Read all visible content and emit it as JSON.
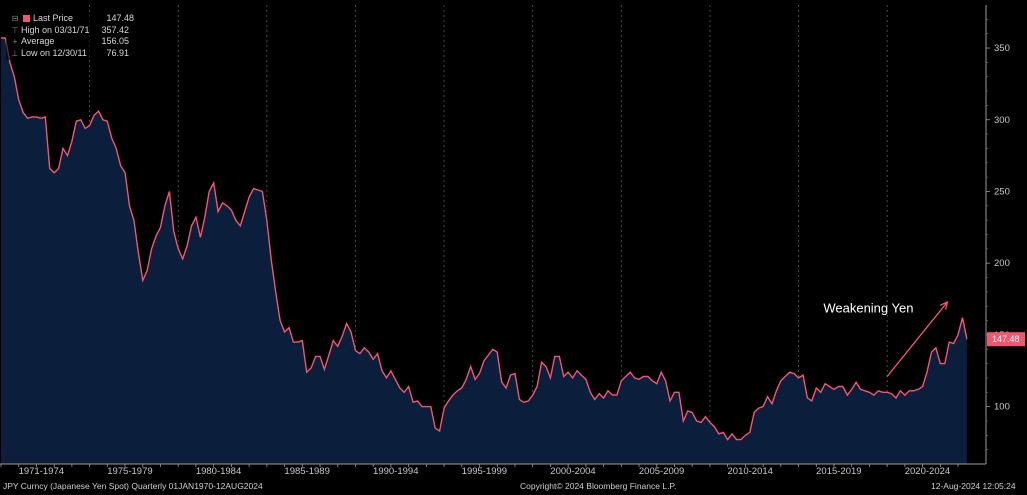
{
  "legend": {
    "items": [
      {
        "marker": "swatch",
        "label": "Last Price",
        "value": "147.48"
      },
      {
        "marker": "⊤",
        "label": "High on 03/31/71",
        "value": "357.42"
      },
      {
        "marker": "+",
        "label": "Average",
        "value": "156.05"
      },
      {
        "marker": "⊥",
        "label": "Low on 12/30/11",
        "value": "76.91"
      }
    ]
  },
  "footer": {
    "left": "JPY Curncy (Japanese Yen Spot)  Quarterly 01JAN1970-12AUG2024",
    "center": "Copyright© 2024 Bloomberg Finance L.P.",
    "right": "12-Aug-2024 12:05:24"
  },
  "colors": {
    "line": "#f4566e",
    "fill": "#0b1e3c",
    "background": "#000000"
  },
  "chart_data": {
    "type": "area",
    "title": "",
    "xlabel": "",
    "ylabel": "",
    "ylim": [
      60,
      380
    ],
    "xlim": [
      1970.0,
      2024.9
    ],
    "yticks": [
      100,
      150,
      200,
      250,
      300,
      350
    ],
    "xtick_labels": [
      "1971-1974",
      "1975-1979",
      "1980-1984",
      "1985-1989",
      "1990-1994",
      "1995-1999",
      "2000-2004",
      "2005-2009",
      "2010-2014",
      "2015-2019",
      "2020-2024"
    ],
    "grid": true,
    "grid_style": "dashed-vertical",
    "legend_position": "top-left",
    "y_axis_side": "right",
    "last_value_label": "147.48",
    "annotation": {
      "text": "Weakening Yen",
      "arrow_from": [
        2020.0,
        121
      ],
      "arrow_to": [
        2023.4,
        173
      ]
    },
    "series": [
      {
        "name": "Last Price",
        "x": [
          1970.0,
          1970.25,
          1970.5,
          1970.75,
          1971.0,
          1971.25,
          1971.5,
          1971.75,
          1972.0,
          1972.25,
          1972.5,
          1972.75,
          1973.0,
          1973.25,
          1973.5,
          1973.75,
          1974.0,
          1974.25,
          1974.5,
          1974.75,
          1975.0,
          1975.25,
          1975.5,
          1975.75,
          1976.0,
          1976.25,
          1976.5,
          1976.75,
          1977.0,
          1977.25,
          1977.5,
          1977.75,
          1978.0,
          1978.25,
          1978.5,
          1978.75,
          1979.0,
          1979.25,
          1979.5,
          1979.75,
          1980.0,
          1980.25,
          1980.5,
          1980.75,
          1981.0,
          1981.25,
          1981.5,
          1981.75,
          1982.0,
          1982.25,
          1982.5,
          1982.75,
          1983.0,
          1983.25,
          1983.5,
          1983.75,
          1984.0,
          1984.25,
          1984.5,
          1984.75,
          1985.0,
          1985.25,
          1985.5,
          1985.75,
          1986.0,
          1986.25,
          1986.5,
          1986.75,
          1987.0,
          1987.25,
          1987.5,
          1987.75,
          1988.0,
          1988.25,
          1988.5,
          1988.75,
          1989.0,
          1989.25,
          1989.5,
          1989.75,
          1990.0,
          1990.25,
          1990.5,
          1990.75,
          1991.0,
          1991.25,
          1991.5,
          1991.75,
          1992.0,
          1992.25,
          1992.5,
          1992.75,
          1993.0,
          1993.25,
          1993.5,
          1993.75,
          1994.0,
          1994.25,
          1994.5,
          1994.75,
          1995.0,
          1995.25,
          1995.5,
          1995.75,
          1996.0,
          1996.25,
          1996.5,
          1996.75,
          1997.0,
          1997.25,
          1997.5,
          1997.75,
          1998.0,
          1998.25,
          1998.5,
          1998.75,
          1999.0,
          1999.25,
          1999.5,
          1999.75,
          2000.0,
          2000.25,
          2000.5,
          2000.75,
          2001.0,
          2001.25,
          2001.5,
          2001.75,
          2002.0,
          2002.25,
          2002.5,
          2002.75,
          2003.0,
          2003.25,
          2003.5,
          2003.75,
          2004.0,
          2004.25,
          2004.5,
          2004.75,
          2005.0,
          2005.25,
          2005.5,
          2005.75,
          2006.0,
          2006.25,
          2006.5,
          2006.75,
          2007.0,
          2007.25,
          2007.5,
          2007.75,
          2008.0,
          2008.25,
          2008.5,
          2008.75,
          2009.0,
          2009.25,
          2009.5,
          2009.75,
          2010.0,
          2010.25,
          2010.5,
          2010.75,
          2011.0,
          2011.25,
          2011.5,
          2011.75,
          2012.0,
          2012.25,
          2012.5,
          2012.75,
          2013.0,
          2013.25,
          2013.5,
          2013.75,
          2014.0,
          2014.25,
          2014.5,
          2014.75,
          2015.0,
          2015.25,
          2015.5,
          2015.75,
          2016.0,
          2016.25,
          2016.5,
          2016.75,
          2017.0,
          2017.25,
          2017.5,
          2017.75,
          2018.0,
          2018.25,
          2018.5,
          2018.75,
          2019.0,
          2019.25,
          2019.5,
          2019.75,
          2020.0,
          2020.25,
          2020.5,
          2020.75,
          2021.0,
          2021.25,
          2021.5,
          2021.75,
          2022.0,
          2022.25,
          2022.5,
          2022.75,
          2023.0,
          2023.25,
          2023.5,
          2023.75,
          2024.0,
          2024.25,
          2024.5
        ],
        "values": [
          357,
          357,
          340,
          330,
          314,
          305,
          301,
          302,
          302,
          301,
          302,
          266,
          263,
          266,
          280,
          275,
          285,
          299,
          300,
          294,
          296,
          303,
          306,
          300,
          299,
          287,
          280,
          268,
          263,
          240,
          230,
          207,
          188,
          195,
          210,
          219,
          225,
          240,
          250,
          222,
          210,
          203,
          212,
          226,
          232,
          218,
          232,
          250,
          256,
          236,
          242,
          240,
          237,
          230,
          226,
          236,
          246,
          252,
          251,
          250,
          230,
          202,
          180,
          160,
          152,
          155,
          145,
          145,
          146,
          124,
          127,
          135,
          135,
          126,
          136,
          146,
          142,
          149,
          158,
          152,
          139,
          137,
          141,
          138,
          133,
          137,
          125,
          120,
          125,
          119,
          113,
          110,
          114,
          103,
          104,
          100,
          100,
          100,
          85,
          83,
          99,
          104,
          108,
          111,
          113,
          119,
          128,
          119,
          123,
          132,
          136,
          140,
          138,
          117,
          113,
          122,
          123,
          105,
          103,
          104,
          108,
          114,
          131,
          128,
          120,
          135,
          135,
          121,
          124,
          120,
          125,
          122,
          119,
          110,
          105,
          109,
          106,
          111,
          108,
          108,
          118,
          121,
          124,
          120,
          119,
          121,
          121,
          118,
          116,
          124,
          118,
          104,
          110,
          110,
          90,
          97,
          96,
          90,
          89,
          93,
          89,
          86,
          81,
          82,
          77,
          81,
          77,
          77,
          80,
          82,
          96,
          99,
          100,
          107,
          102,
          111,
          118,
          121,
          124,
          123,
          120,
          122,
          106,
          104,
          113,
          110,
          116,
          114,
          112,
          114,
          114,
          108,
          112,
          117,
          112,
          111,
          110,
          108,
          111,
          110,
          110,
          109,
          106,
          111,
          108,
          111,
          111,
          112,
          114,
          124,
          138,
          141,
          130,
          130,
          145,
          144,
          150,
          162,
          147
        ]
      }
    ]
  }
}
